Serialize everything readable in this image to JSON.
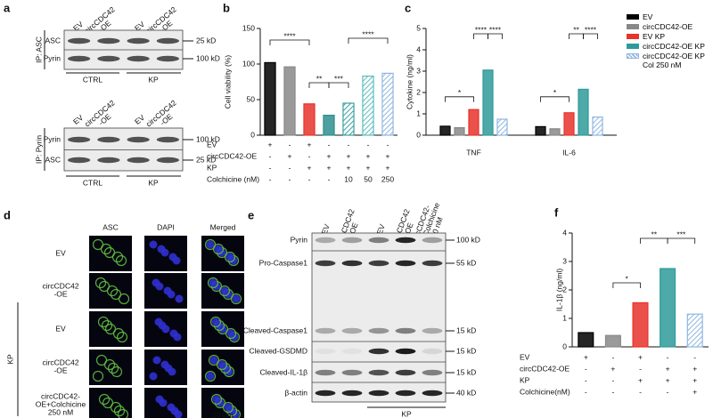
{
  "blot_a": {
    "label": "a",
    "lanes": [
      [
        "EV"
      ],
      [
        "circCDC42",
        "-OE"
      ],
      [
        "EV"
      ],
      [
        "circCDC42",
        "-OE"
      ]
    ],
    "groups": [
      "CTRL",
      "KP"
    ],
    "top": {
      "ip": "IP: ASC",
      "rows": [
        "ASC",
        "Pyrin"
      ],
      "markers": [
        "25 kD",
        "100 kD"
      ]
    },
    "bottom": {
      "ip": "IP: Pyrin",
      "rows": [
        "Pyrin",
        "ASC"
      ],
      "markers": [
        "100 kD",
        "25 kD"
      ]
    }
  },
  "imaging_d": {
    "label": "d",
    "columns": [
      "ASC",
      "DAPI",
      "Merged"
    ],
    "rows": [
      [
        "EV"
      ],
      [
        "circCDC42",
        "-OE"
      ],
      [
        "EV"
      ],
      [
        "circCDC42",
        "-OE"
      ],
      [
        "circCDC42-",
        "OE+Colchicine",
        "250 nM"
      ]
    ],
    "group": "KP",
    "scale": "20 μm"
  },
  "blot_e": {
    "label": "e",
    "lanes": [
      [
        "EV"
      ],
      [
        "circCDC42",
        "-OE"
      ],
      [
        "EV"
      ],
      [
        "circCDC42",
        "-OE"
      ],
      [
        "circCDC42-",
        "OE+Colchicine",
        "250 nM"
      ]
    ],
    "rows": [
      "Pyrin",
      "Pro-Caspase1",
      "Cleaved-Caspase1",
      "Cleaved-GSDMD",
      "Cleaved-IL-1β",
      "β-actin"
    ],
    "markers": [
      "100 kD",
      "55 kD",
      "15 kD",
      "15 kD",
      "15 kD",
      "40 kD"
    ],
    "group": "KP"
  },
  "chart_data": [
    {
      "type": "bar",
      "label": "b",
      "y_label": "Cell viability (%)",
      "values": [
        102,
        96,
        44,
        28,
        45,
        83,
        87
      ],
      "colors": [
        "#000000",
        "#888888",
        "#e8322b",
        "#2f8f8f",
        "#3aa0a0",
        "#5bbdbd",
        "#8fb6e0"
      ],
      "hatched": [
        false,
        false,
        false,
        false,
        true,
        true,
        true
      ],
      "ylim": [
        0,
        150
      ],
      "yticks": [
        0,
        50,
        100,
        150
      ],
      "significance": [
        "****",
        "**",
        "***",
        "****"
      ],
      "conditions": [
        {
          "name": "EV",
          "signs": [
            "+",
            "-",
            "+",
            "-",
            "-",
            "-",
            "-"
          ]
        },
        {
          "name": "circCDC42-OE",
          "signs": [
            "-",
            "+",
            "-",
            "+",
            "+",
            "+",
            "+"
          ]
        },
        {
          "name": "KP",
          "signs": [
            "-",
            "-",
            "+",
            "+",
            "+",
            "+",
            "+"
          ]
        },
        {
          "name": "Colchicine (nM)",
          "signs": [
            "-",
            "-",
            "-",
            "-",
            "10",
            "50",
            "250"
          ]
        }
      ]
    },
    {
      "type": "grouped_bar",
      "label": "c",
      "y_label": "Cytokine (ng/ml)",
      "categories": [
        "TNF",
        "IL-6"
      ],
      "series": [
        {
          "name": "EV",
          "color": "#000000",
          "values": [
            0.42,
            0.4
          ]
        },
        {
          "name": "circCDC42-OE",
          "color": "#888888",
          "values": [
            0.35,
            0.3
          ]
        },
        {
          "name": "EV KP",
          "color": "#e8322b",
          "values": [
            1.2,
            1.05
          ]
        },
        {
          "name": "circCDC42-OE KP",
          "color": "#2f9a9a",
          "values": [
            3.05,
            2.15
          ]
        },
        {
          "name": "circCDC42-OE KP Col 250 nM",
          "color": "#8fb6e0",
          "hatched": true,
          "values": [
            0.75,
            0.85
          ]
        }
      ],
      "ylim": [
        0,
        5
      ],
      "yticks": [
        0,
        1,
        2,
        3,
        4,
        5
      ],
      "significance": [
        [
          "*",
          "****",
          "****"
        ],
        [
          "*",
          "**",
          "****"
        ]
      ]
    },
    {
      "type": "bar",
      "label": "f",
      "y_label": "IL-1β (ng/ml)",
      "values": [
        0.5,
        0.4,
        1.55,
        2.75,
        1.15
      ],
      "colors": [
        "#000000",
        "#888888",
        "#e8322b",
        "#2f9a9a",
        "#8fb6e0"
      ],
      "hatched": [
        false,
        false,
        false,
        false,
        true
      ],
      "ylim": [
        0,
        4
      ],
      "yticks": [
        0,
        1,
        2,
        3,
        4
      ],
      "significance": [
        "*",
        "**",
        "***"
      ],
      "conditions": [
        {
          "name": "EV",
          "signs": [
            "+",
            "-",
            "+",
            "-",
            "-"
          ]
        },
        {
          "name": "circCDC42-OE",
          "signs": [
            "-",
            "+",
            "-",
            "+",
            "+"
          ]
        },
        {
          "name": "KP",
          "signs": [
            "-",
            "-",
            "+",
            "+",
            "+"
          ]
        },
        {
          "name": "Colchicine(nM)",
          "signs": [
            "-",
            "-",
            "-",
            "-",
            "+"
          ]
        }
      ]
    }
  ]
}
